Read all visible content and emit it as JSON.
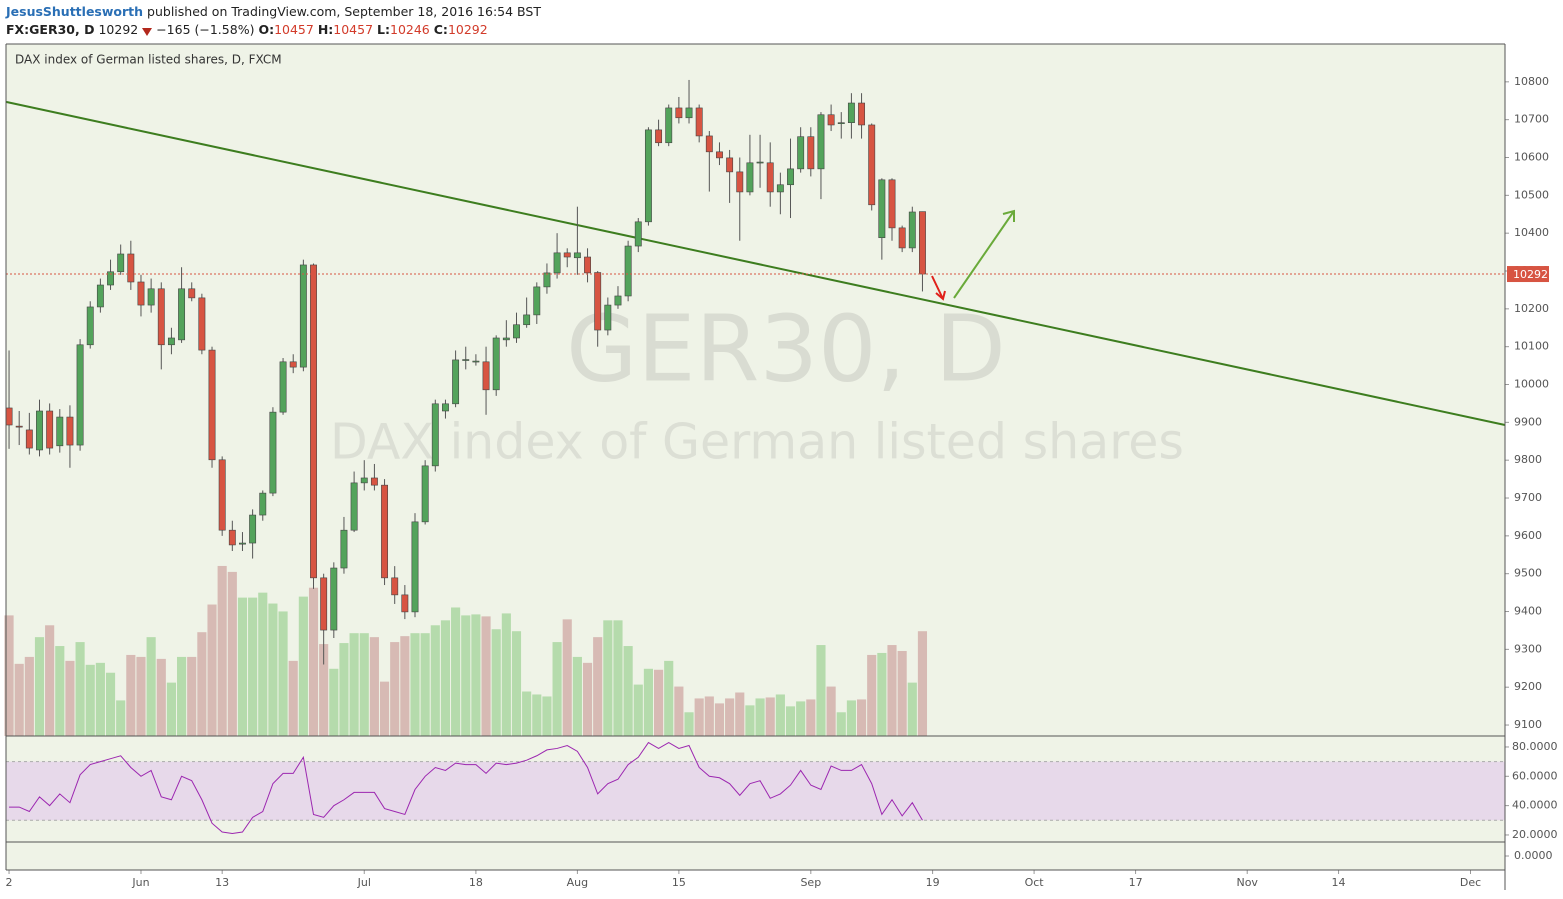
{
  "header": {
    "author": "JesusShuttlesworth",
    "published": "published on TradingView.com, September 18, 2016 16:54 BST",
    "symbol": "FX:GER30, D",
    "last": "10292",
    "change": "−165 (−1.58%)",
    "ohlc": [
      {
        "label": "O:",
        "value": "10457"
      },
      {
        "label": "H:",
        "value": "10457"
      },
      {
        "label": "L:",
        "value": "10246"
      },
      {
        "label": "C:",
        "value": "10292"
      }
    ]
  },
  "chart_data": {
    "type": "candlestick",
    "title": "DAX index of German listed shares, D, FXCM",
    "watermark": {
      "symbol": "GER30, D",
      "description": "DAX index of German listed shares"
    },
    "up_color": "#53a35b",
    "down_color": "#d75442",
    "volume_up_color": "#b5dbac",
    "volume_down_color": "#d7bab4",
    "open": [
      9938,
      9890,
      9880,
      9827,
      9930,
      9838,
      9914,
      9840,
      10105,
      10205,
      10263,
      10298,
      10345,
      10271,
      10210,
      10253,
      10105,
      10118,
      10253,
      10229,
      10091,
      9801,
      9615,
      9578,
      9581,
      9655,
      9713,
      9927,
      10060,
      10046,
      10316,
      9489,
      9351,
      9515,
      9615,
      9740,
      9753,
      9734,
      9489,
      9444,
      9399,
      9637,
      9785,
      9930,
      9949,
      10065,
      10060,
      10060,
      9986,
      10118,
      10123,
      10158,
      10184,
      10258,
      10295,
      10348,
      10335,
      10337,
      10296,
      10144,
      10210,
      10234,
      10366,
      10430,
      10673,
      10639,
      10731,
      10705,
      10731,
      10657,
      10615,
      10599,
      10562,
      10509,
      10586,
      10586,
      10509,
      10528,
      10570,
      10655,
      10570,
      10713,
      10690,
      10692,
      10744,
      10686,
      10388,
      10541,
      10414,
      10361,
      10457
    ],
    "high": [
      10090,
      9930,
      9925,
      9960,
      9950,
      9935,
      9945,
      10120,
      10220,
      10280,
      10330,
      10370,
      10380,
      10290,
      10280,
      10270,
      10150,
      10310,
      10270,
      10240,
      10100,
      9810,
      9640,
      9610,
      9670,
      9720,
      9940,
      10070,
      10080,
      10330,
      10320,
      9500,
      9530,
      9650,
      9770,
      9800,
      9790,
      9750,
      9520,
      9470,
      9660,
      9800,
      9960,
      9960,
      10090,
      10100,
      10080,
      10100,
      10130,
      10170,
      10190,
      10230,
      10270,
      10320,
      10400,
      10360,
      10470,
      10360,
      10300,
      10230,
      10260,
      10380,
      10440,
      10680,
      10700,
      10740,
      10760,
      10805,
      10740,
      10670,
      10640,
      10620,
      10600,
      10660,
      10660,
      10640,
      10560,
      10650,
      10680,
      10680,
      10720,
      10740,
      10720,
      10770,
      10770,
      10690,
      10545,
      10545,
      10420,
      10470,
      10457
    ],
    "low": [
      9830,
      9840,
      9815,
      9810,
      9815,
      9820,
      9780,
      9825,
      10095,
      10190,
      10250,
      10290,
      10250,
      10180,
      10190,
      10040,
      10080,
      10110,
      10220,
      10080,
      9780,
      9600,
      9560,
      9560,
      9540,
      9640,
      9705,
      9920,
      10030,
      10035,
      9460,
      9260,
      9330,
      9500,
      9610,
      9720,
      9720,
      9470,
      9420,
      9380,
      9385,
      9630,
      9770,
      9910,
      9940,
      10040,
      10050,
      9920,
      9970,
      10100,
      10110,
      10150,
      10160,
      10240,
      10280,
      10310,
      10290,
      10270,
      10100,
      10130,
      10200,
      10220,
      10350,
      10420,
      10630,
      10630,
      10690,
      10690,
      10640,
      10510,
      10580,
      10480,
      10380,
      10500,
      10520,
      10470,
      10450,
      10440,
      10560,
      10550,
      10490,
      10670,
      10650,
      10650,
      10650,
      10460,
      10330,
      10380,
      10350,
      10350,
      10246
    ],
    "close": [
      9893,
      9888,
      9832,
      9930,
      9832,
      9914,
      9840,
      10105,
      10205,
      10263,
      10298,
      10345,
      10271,
      10210,
      10253,
      10105,
      10123,
      10253,
      10229,
      10091,
      9801,
      9615,
      9576,
      9581,
      9655,
      9713,
      9927,
      10060,
      10046,
      10316,
      9489,
      9351,
      9515,
      9615,
      9740,
      9753,
      9734,
      9489,
      9444,
      9399,
      9637,
      9785,
      9949,
      9949,
      10065,
      10066,
      10062,
      9986,
      10123,
      10123,
      10158,
      10184,
      10258,
      10295,
      10348,
      10337,
      10348,
      10295,
      10144,
      10210,
      10234,
      10366,
      10430,
      10673,
      10639,
      10731,
      10705,
      10731,
      10657,
      10615,
      10599,
      10562,
      10509,
      10586,
      10588,
      10509,
      10528,
      10570,
      10655,
      10570,
      10713,
      10686,
      10692,
      10744,
      10686,
      10475,
      10541,
      10414,
      10361,
      10456,
      10292
    ],
    "volume": [
      122,
      73,
      80,
      100,
      112,
      91,
      76,
      95,
      72,
      74,
      64,
      36,
      82,
      80,
      100,
      78,
      54,
      80,
      80,
      105,
      133,
      172,
      166,
      140,
      140,
      145,
      134,
      126,
      76,
      141,
      150,
      93,
      68,
      94,
      104,
      104,
      100,
      55,
      95,
      101,
      104,
      104,
      112,
      117,
      130,
      122,
      123,
      121,
      108,
      124,
      106,
      45,
      42,
      40,
      95,
      118,
      80,
      74,
      100,
      117,
      117,
      91,
      52,
      68,
      67,
      76,
      50,
      24,
      38,
      40,
      33,
      38,
      44,
      31,
      38,
      39,
      42,
      30,
      35,
      37,
      92,
      50,
      24,
      36,
      37,
      82,
      84,
      92,
      86,
      54,
      106
    ],
    "volume_ylim": [
      0,
      700
    ],
    "xlim": [
      -0.3,
      147.4
    ],
    "xticks": [
      {
        "value": 0,
        "label": "2"
      },
      {
        "value": 13,
        "label": "Jun"
      },
      {
        "value": 21,
        "label": "13"
      },
      {
        "value": 35,
        "label": "Jul"
      },
      {
        "value": 46,
        "label": "18"
      },
      {
        "value": 56,
        "label": "Aug"
      },
      {
        "value": 66,
        "label": "15"
      },
      {
        "value": 79,
        "label": "Sep"
      },
      {
        "value": 91,
        "label": "19"
      },
      {
        "value": 101,
        "label": "Oct"
      },
      {
        "value": 111,
        "label": "17"
      },
      {
        "value": 122,
        "label": "Nov"
      },
      {
        "value": 131,
        "label": "14"
      },
      {
        "value": 144,
        "label": "Dec"
      }
    ],
    "ylim": [
      9071,
      10900
    ],
    "yticks": [
      9100,
      9200,
      9300,
      9400,
      9500,
      9600,
      9700,
      9800,
      9900,
      10000,
      10100,
      10200,
      10300,
      10400,
      10500,
      10600,
      10700,
      10800
    ],
    "last_price_color": "#d75442",
    "trendline": {
      "color": "#3d7d1f",
      "x": [
        -0.3,
        147.4
      ],
      "y": [
        10747,
        9893
      ]
    },
    "rsi": {
      "color": "#9c27b0",
      "band": [
        30,
        70
      ],
      "ylim": [
        15.2,
        86.8
      ],
      "yticks": [
        {
          "value": 20,
          "label": "20.0000"
        },
        {
          "value": 40,
          "label": "40.0000"
        },
        {
          "value": 60,
          "label": "60.0000"
        },
        {
          "value": 80,
          "label": "80.0000"
        }
      ],
      "values": [
        39,
        39,
        36,
        46,
        40,
        48,
        42,
        61,
        68,
        70,
        72,
        74,
        66,
        60,
        64,
        46,
        44,
        60,
        57,
        44,
        28,
        22,
        21,
        22,
        32,
        36,
        55,
        62,
        62,
        73,
        34,
        32,
        40,
        44,
        49,
        49,
        49,
        38,
        36,
        34,
        51,
        60,
        66,
        64,
        69,
        68,
        68,
        62,
        69,
        68,
        69,
        71,
        74,
        78,
        79,
        81,
        77,
        66,
        48,
        55,
        58,
        68,
        73,
        83,
        79,
        83,
        79,
        81,
        66,
        60,
        59,
        55,
        47,
        55,
        57,
        45,
        48,
        54,
        64,
        54,
        51,
        67,
        64,
        64,
        68,
        55,
        34,
        44,
        33,
        42,
        30
      ]
    },
    "lower_pane": {
      "ylim": [
        -2.5,
        2.5
      ],
      "yticks": [
        {
          "value": 0,
          "label": "0.0000"
        }
      ]
    }
  }
}
